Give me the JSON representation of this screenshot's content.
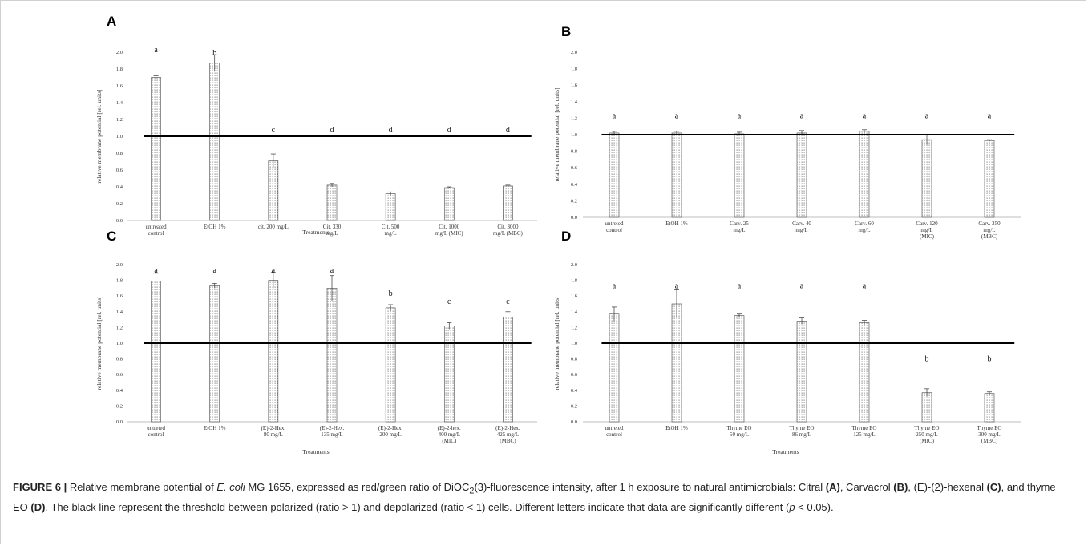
{
  "caption": {
    "label": "FIGURE 6 |",
    "text_1": " Relative membrane potential of ",
    "organism": "E. coli",
    "text_2": " MG 1655, expressed as red/green ratio of DiOC",
    "subscript": "2",
    "text_3": "(3)-fluorescence intensity, after 1 h exposure to natural antimicrobials: Citral ",
    "ref_a": "(A)",
    "text_4": ", Carvacrol ",
    "ref_b": "(B)",
    "text_5": ", (E)-(2)-hexenal ",
    "ref_c": "(C)",
    "text_6": ", and thyme EO ",
    "ref_d": "(D)",
    "text_7": ". The black line represent the threshold between polarized (ratio > 1) and depolarized (ratio < 1) cells. Different letters indicate that data are significantly different (",
    "p_symbol": "p",
    "text_8": " < 0.05)."
  },
  "chart_data": [
    {
      "panel": "A",
      "type": "bar",
      "ylabel": "relative membrane potential [rel. units]",
      "xlabel": "Treatments",
      "ylim": [
        0,
        2.0
      ],
      "yticks": [
        "0.0",
        "0.2",
        "0.4",
        "0.6",
        "0.8",
        "1.0",
        "1.2",
        "1.4",
        "1.6",
        "1.8",
        "2.0"
      ],
      "threshold": 1.0,
      "categories": [
        [
          "untreated",
          "control"
        ],
        [
          "EtOH 1%"
        ],
        [
          "cit. 200 mg/L"
        ],
        [
          "Cit. 330",
          "mg/L"
        ],
        [
          "Cit. 500",
          "mg/L"
        ],
        [
          "Cit. 1000",
          "mg/L (MIC)"
        ],
        [
          "Cit. 3000",
          "mg/L (MBC)"
        ]
      ],
      "values": [
        1.7,
        1.87,
        0.71,
        0.42,
        0.32,
        0.39,
        0.41
      ],
      "errors": [
        0.02,
        0.1,
        0.08,
        0.02,
        0.02,
        0.01,
        0.01
      ],
      "letters": [
        "a",
        "b",
        "c",
        "d",
        "d",
        "d",
        "d"
      ]
    },
    {
      "panel": "B",
      "type": "bar",
      "ylabel": "relative membrane potential [rel. units]",
      "xlabel": "",
      "ylim": [
        0,
        2.0
      ],
      "yticks": [
        "0.0",
        "0.2",
        "0.4",
        "0.6",
        "0.8",
        "1.0",
        "1.2",
        "1.4",
        "1.6",
        "1.8",
        "2.0"
      ],
      "threshold": 1.0,
      "categories": [
        [
          "untreted",
          "control"
        ],
        [
          "EtOH 1%"
        ],
        [
          "Carv. 25",
          "mg/L"
        ],
        [
          "Carv. 40",
          "mg/L"
        ],
        [
          "Carv. 60",
          "mg/L"
        ],
        [
          "Carv. 120",
          "mg/L",
          "(MIC)"
        ],
        [
          "Carv. 250",
          "mg/L",
          "(MBC)"
        ]
      ],
      "values": [
        1.02,
        1.02,
        1.01,
        1.02,
        1.04,
        0.94,
        0.93
      ],
      "errors": [
        0.02,
        0.02,
        0.02,
        0.03,
        0.02,
        0.06,
        0.01
      ],
      "letters": [
        "a",
        "a",
        "a",
        "a",
        "a",
        "a",
        "a"
      ]
    },
    {
      "panel": "C",
      "type": "bar",
      "ylabel": "relative membrane potential [rel. units]",
      "xlabel": "Treatments",
      "ylim": [
        0,
        2.0
      ],
      "yticks": [
        "0.0",
        "0.2",
        "0.4",
        "0.6",
        "0.8",
        "1.0",
        "1.2",
        "1.4",
        "1.6",
        "1.8",
        "2.0"
      ],
      "threshold": 1.0,
      "categories": [
        [
          "untreted",
          "control"
        ],
        [
          "EtOH 1%"
        ],
        [
          "(E)-2-Hex.",
          "80 mg/L"
        ],
        [
          "(E)-2-Hex.",
          "135 mg/L"
        ],
        [
          "(E)-2-Hex.",
          "200 mg/L"
        ],
        [
          "(E)-2-hex.",
          "400 mg/L",
          "(MIC)"
        ],
        [
          "(E)-2-Hex.",
          "425 mg/L",
          "(MBC)"
        ]
      ],
      "values": [
        1.79,
        1.73,
        1.8,
        1.7,
        1.45,
        1.22,
        1.33
      ],
      "errors": [
        0.1,
        0.03,
        0.1,
        0.16,
        0.04,
        0.04,
        0.07
      ],
      "letters": [
        "a",
        "a",
        "a",
        "a",
        "b",
        "c",
        "c"
      ]
    },
    {
      "panel": "D",
      "type": "bar",
      "ylabel": "relative membrane potential [rel. units]",
      "xlabel": "Treatments",
      "ylim": [
        0,
        2.0
      ],
      "yticks": [
        "0.0",
        "0.2",
        "0.4",
        "0.6",
        "0.8",
        "1.0",
        "1.2",
        "1.4",
        "1.6",
        "1.8",
        "2.0"
      ],
      "threshold": 1.0,
      "categories": [
        [
          "untreted",
          "control"
        ],
        [
          "EtOH 1%"
        ],
        [
          "Thyme EO",
          "50 mg/L"
        ],
        [
          "Thyme EO",
          "86 mg/L"
        ],
        [
          "Thyme EO",
          "125 mg/L"
        ],
        [
          "Thyme EO",
          "250 mg/L",
          "(MIC)"
        ],
        [
          "Thyme EO",
          "300 mg/L",
          "(MBC)"
        ]
      ],
      "values": [
        1.37,
        1.5,
        1.35,
        1.28,
        1.26,
        0.37,
        0.36
      ],
      "errors": [
        0.09,
        0.18,
        0.02,
        0.04,
        0.03,
        0.05,
        0.02
      ],
      "letters": [
        "a",
        "a",
        "a",
        "a",
        "a",
        "b",
        "b"
      ]
    }
  ]
}
